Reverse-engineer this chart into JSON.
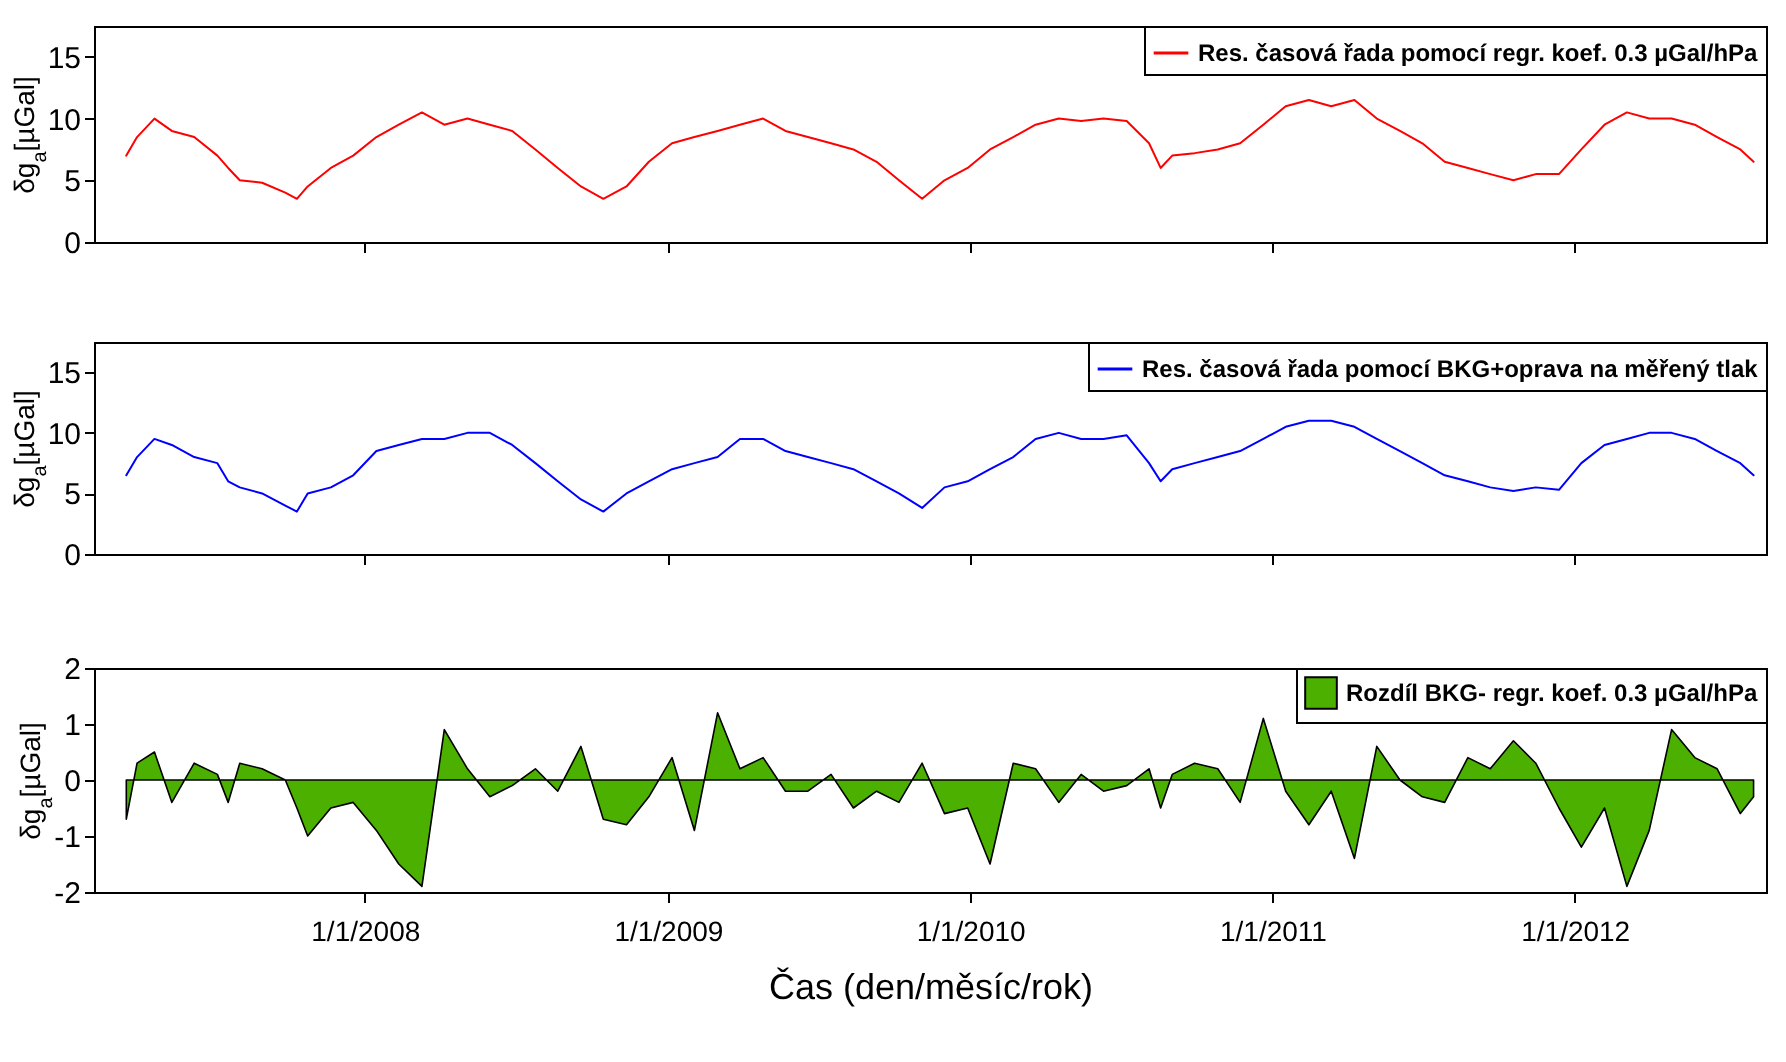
{
  "chart_data": [
    {
      "type": "line",
      "ylabel": "δg$_{a}$[µGal]",
      "legend": "top right",
      "grid": false,
      "tick_labels": "y",
      "xlim": [
        "2007-02-08",
        "2012-08-19"
      ],
      "ylim": [
        0,
        17.5
      ],
      "yticks": [
        0,
        5,
        10,
        15
      ],
      "xticks": [
        {
          "value": "2008-01-01",
          "label": null
        },
        {
          "value": "2009-01-01",
          "label": null
        },
        {
          "value": "2010-01-01",
          "label": null
        },
        {
          "value": "2011-01-01",
          "label": null
        },
        {
          "value": "2012-01-01",
          "label": null
        }
      ],
      "x": [
        "2007-03-19",
        "2007-04-01",
        "2007-04-22",
        "2007-05-13",
        "2007-06-09",
        "2007-07-07",
        "2007-07-20",
        "2007-08-03",
        "2007-08-30",
        "2007-09-27",
        "2007-10-11",
        "2007-10-24",
        "2007-11-21",
        "2007-12-18",
        "2008-01-15",
        "2008-02-11",
        "2008-03-10",
        "2008-04-06",
        "2008-05-04",
        "2008-05-31",
        "2008-06-27",
        "2008-07-25",
        "2008-08-21",
        "2008-09-18",
        "2008-10-15",
        "2008-11-12",
        "2008-12-09",
        "2009-01-06",
        "2009-02-02",
        "2009-03-02",
        "2009-03-29",
        "2009-04-26",
        "2009-05-23",
        "2009-06-19",
        "2009-07-17",
        "2009-08-13",
        "2009-09-10",
        "2009-10-07",
        "2009-11-04",
        "2009-12-01",
        "2009-12-29",
        "2010-01-25",
        "2010-02-22",
        "2010-03-21",
        "2010-04-18",
        "2010-05-15",
        "2010-06-11",
        "2010-07-09",
        "2010-08-05",
        "2010-08-19",
        "2010-09-02",
        "2010-09-29",
        "2010-10-27",
        "2010-11-23",
        "2010-12-21",
        "2011-01-17",
        "2011-02-14",
        "2011-03-13",
        "2011-04-10",
        "2011-05-07",
        "2011-06-04",
        "2011-07-01",
        "2011-07-28",
        "2011-08-25",
        "2011-09-21",
        "2011-10-19",
        "2011-11-15",
        "2011-12-13",
        "2012-01-09",
        "2012-02-06",
        "2012-03-04",
        "2012-03-31",
        "2012-04-27",
        "2012-05-25",
        "2012-06-21",
        "2012-07-19",
        "2012-08-04"
      ],
      "series": [
        {
          "name": "Res. časová řada pomocí regr. koef. 0.3 µGal/hPa",
          "color": "#ff0000",
          "values": [
            7.0,
            8.5,
            10,
            9,
            8.5,
            7,
            6,
            5,
            4.8,
            4,
            3.5,
            4.5,
            6,
            7,
            8.5,
            9.5,
            10.5,
            9.5,
            10,
            9.5,
            9,
            7.5,
            6,
            4.5,
            3.5,
            4.5,
            6.5,
            8,
            8.5,
            9,
            9.5,
            10,
            9,
            8.5,
            8,
            7.5,
            6.5,
            5,
            3.5,
            5,
            6,
            7.5,
            8.5,
            9.5,
            10,
            9.8,
            10,
            9.8,
            8,
            6,
            7,
            7.2,
            7.5,
            8,
            9.5,
            11,
            11.5,
            11,
            11.5,
            10,
            9,
            8,
            6.5,
            6,
            5.5,
            5,
            5.5,
            5.5,
            7.5,
            9.5,
            10.5,
            10,
            10,
            9.5,
            8.5,
            7.5,
            6.5
          ]
        }
      ]
    },
    {
      "type": "line",
      "ylabel": "δg$_{a}$[µGal]",
      "legend": "top right",
      "grid": false,
      "tick_labels": "y",
      "xlim": [
        "2007-02-08",
        "2012-08-19"
      ],
      "ylim": [
        0,
        17.5
      ],
      "yticks": [
        0,
        5,
        10,
        15
      ],
      "xticks": [
        {
          "value": "2008-01-01",
          "label": null
        },
        {
          "value": "2009-01-01",
          "label": null
        },
        {
          "value": "2010-01-01",
          "label": null
        },
        {
          "value": "2011-01-01",
          "label": null
        },
        {
          "value": "2012-01-01",
          "label": null
        }
      ],
      "x": [
        "2007-03-19",
        "2007-04-01",
        "2007-04-22",
        "2007-05-13",
        "2007-06-09",
        "2007-07-07",
        "2007-07-20",
        "2007-08-03",
        "2007-08-30",
        "2007-09-27",
        "2007-10-11",
        "2007-10-24",
        "2007-11-21",
        "2007-12-18",
        "2008-01-15",
        "2008-02-11",
        "2008-03-10",
        "2008-04-06",
        "2008-05-04",
        "2008-05-31",
        "2008-06-27",
        "2008-07-25",
        "2008-08-21",
        "2008-09-18",
        "2008-10-15",
        "2008-11-12",
        "2008-12-09",
        "2009-01-06",
        "2009-02-02",
        "2009-03-02",
        "2009-03-29",
        "2009-04-26",
        "2009-05-23",
        "2009-06-19",
        "2009-07-17",
        "2009-08-13",
        "2009-09-10",
        "2009-10-07",
        "2009-11-04",
        "2009-12-01",
        "2009-12-29",
        "2010-01-25",
        "2010-02-22",
        "2010-03-21",
        "2010-04-18",
        "2010-05-15",
        "2010-06-11",
        "2010-07-09",
        "2010-08-05",
        "2010-08-19",
        "2010-09-02",
        "2010-09-29",
        "2010-10-27",
        "2010-11-23",
        "2010-12-21",
        "2011-01-17",
        "2011-02-14",
        "2011-03-13",
        "2011-04-10",
        "2011-05-07",
        "2011-06-04",
        "2011-07-01",
        "2011-07-28",
        "2011-08-25",
        "2011-09-21",
        "2011-10-19",
        "2011-11-15",
        "2011-12-13",
        "2012-01-09",
        "2012-02-06",
        "2012-03-04",
        "2012-03-31",
        "2012-04-27",
        "2012-05-25",
        "2012-06-21",
        "2012-07-19",
        "2012-08-04"
      ],
      "series": [
        {
          "name": "Res. časová řada pomocí BKG+oprava na měřený tlak",
          "color": "#0000ff",
          "values": [
            6.5,
            8,
            9.5,
            9,
            8,
            7.5,
            6,
            5.5,
            5,
            4,
            3.5,
            5,
            5.5,
            6.5,
            8.5,
            9,
            9.5,
            9.5,
            10,
            10,
            9,
            7.5,
            6,
            4.5,
            3.5,
            5,
            6,
            7,
            7.5,
            8,
            9.5,
            9.5,
            8.5,
            8,
            7.5,
            7,
            6,
            5,
            3.8,
            5.5,
            6,
            7,
            8,
            9.5,
            10,
            9.5,
            9.5,
            9.8,
            7.5,
            6,
            7,
            7.5,
            8,
            8.5,
            9.5,
            10.5,
            11,
            11,
            10.5,
            9.5,
            8.5,
            7.5,
            6.5,
            6,
            5.5,
            5.2,
            5.5,
            5.3,
            7.5,
            9,
            9.5,
            10,
            10,
            9.5,
            8.5,
            7.5,
            6.5
          ]
        }
      ]
    },
    {
      "type": "area",
      "ylabel": "δg$_{a}$[µGal]",
      "xlabel": "Čas (den/měsíc/rok)",
      "legend": "top right",
      "grid": false,
      "xlim": [
        "2007-02-08",
        "2012-08-19"
      ],
      "ylim": [
        -2,
        2
      ],
      "yticks": [
        -2,
        -1,
        0,
        1,
        2
      ],
      "xticks": [
        {
          "value": "2008-01-01",
          "label": "1/1/2008"
        },
        {
          "value": "2009-01-01",
          "label": "1/1/2009"
        },
        {
          "value": "2010-01-01",
          "label": "1/1/2010"
        },
        {
          "value": "2011-01-01",
          "label": "1/1/2011"
        },
        {
          "value": "2012-01-01",
          "label": "1/1/2012"
        }
      ],
      "x": [
        "2007-03-19",
        "2007-04-01",
        "2007-04-22",
        "2007-05-13",
        "2007-06-09",
        "2007-07-07",
        "2007-07-20",
        "2007-08-03",
        "2007-08-30",
        "2007-09-27",
        "2007-10-11",
        "2007-10-24",
        "2007-11-21",
        "2007-12-18",
        "2008-01-15",
        "2008-02-11",
        "2008-03-10",
        "2008-04-06",
        "2008-05-04",
        "2008-05-31",
        "2008-06-27",
        "2008-07-25",
        "2008-08-21",
        "2008-09-18",
        "2008-10-15",
        "2008-11-12",
        "2008-12-09",
        "2009-01-06",
        "2009-02-02",
        "2009-03-02",
        "2009-03-29",
        "2009-04-26",
        "2009-05-23",
        "2009-06-19",
        "2009-07-17",
        "2009-08-13",
        "2009-09-10",
        "2009-10-07",
        "2009-11-04",
        "2009-12-01",
        "2009-12-29",
        "2010-01-25",
        "2010-02-22",
        "2010-03-21",
        "2010-04-18",
        "2010-05-15",
        "2010-06-11",
        "2010-07-09",
        "2010-08-05",
        "2010-08-19",
        "2010-09-02",
        "2010-09-29",
        "2010-10-27",
        "2010-11-23",
        "2010-12-21",
        "2011-01-17",
        "2011-02-14",
        "2011-03-13",
        "2011-04-10",
        "2011-05-07",
        "2011-06-04",
        "2011-07-01",
        "2011-07-28",
        "2011-08-25",
        "2011-09-21",
        "2011-10-19",
        "2011-11-15",
        "2011-12-13",
        "2012-01-09",
        "2012-02-06",
        "2012-03-04",
        "2012-03-31",
        "2012-04-27",
        "2012-05-25",
        "2012-06-21",
        "2012-07-19",
        "2012-08-04"
      ],
      "series": [
        {
          "name": "Rozdíl BKG- regr. koef. 0.3 µGal/hPa",
          "color": "#4cb000",
          "values": [
            -0.7,
            0.3,
            0.5,
            -0.4,
            0.3,
            0.1,
            -0.4,
            0.3,
            0.2,
            0.0,
            -0.5,
            -1.0,
            -0.5,
            -0.4,
            -0.9,
            -1.5,
            -1.9,
            0.9,
            0.2,
            -0.3,
            -0.1,
            0.2,
            -0.2,
            0.6,
            -0.7,
            -0.8,
            -0.3,
            0.4,
            -0.9,
            1.2,
            0.2,
            0.4,
            -0.2,
            -0.2,
            0.1,
            -0.5,
            -0.2,
            -0.4,
            0.3,
            -0.6,
            -0.5,
            -1.5,
            0.3,
            0.2,
            -0.4,
            0.1,
            -0.2,
            -0.1,
            0.2,
            -0.5,
            0.1,
            0.3,
            0.2,
            -0.4,
            1.1,
            -0.2,
            -0.8,
            -0.2,
            -1.4,
            0.6,
            0.0,
            -0.3,
            -0.4,
            0.4,
            0.2,
            0.7,
            0.3,
            -0.5,
            -1.2,
            -0.5,
            -1.9,
            -0.9,
            0.9,
            0.4,
            0.2,
            -0.6,
            -0.3
          ]
        }
      ]
    }
  ]
}
